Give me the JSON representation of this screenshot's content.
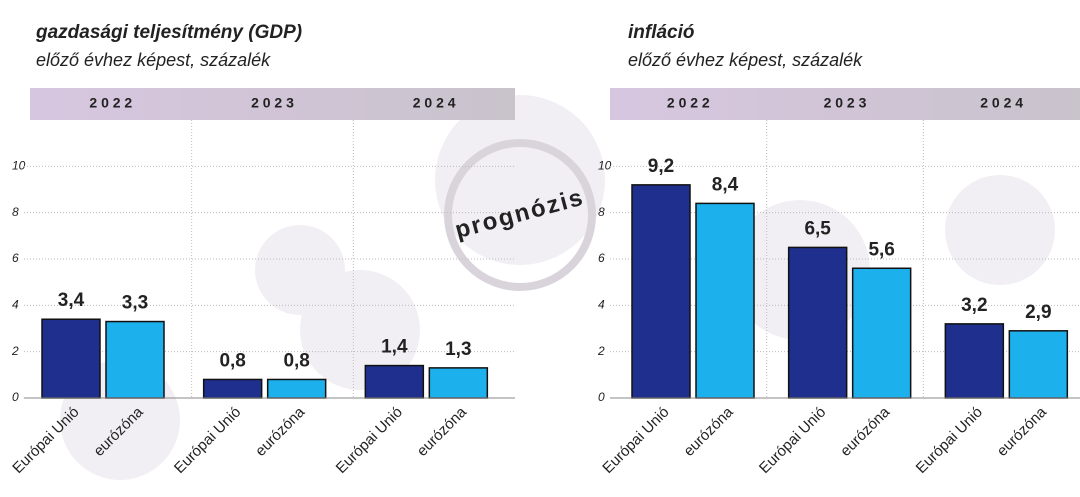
{
  "watermark": "prognózis",
  "chart_data": [
    {
      "type": "bar",
      "title": "gazdasági teljesítmény (GDP)",
      "subtitle": "előző évhez képest, százalék",
      "groups": [
        "2 0 2 2",
        "2 0 2 3",
        "2 0 2 4"
      ],
      "series": [
        {
          "name": "Európai Unió",
          "color": "#1f2f8e",
          "values": [
            3.4,
            0.8,
            1.4
          ],
          "value_labels": [
            "3,4",
            "0,8",
            "1,4"
          ]
        },
        {
          "name": "eurózóna",
          "color": "#1cb1ec",
          "values": [
            3.3,
            0.8,
            1.3
          ],
          "value_labels": [
            "3,3",
            "0,8",
            "1,3"
          ]
        }
      ],
      "ylim": [
        0,
        12
      ],
      "yticks": [
        0,
        2,
        4,
        6,
        8,
        10
      ],
      "grid": true
    },
    {
      "type": "bar",
      "title": "infláció",
      "subtitle": "előző évhez képest, százalék",
      "groups": [
        "2 0 2 2",
        "2 0 2 3",
        "2 0 2 4"
      ],
      "series": [
        {
          "name": "Európai Unió",
          "color": "#1f2f8e",
          "values": [
            9.2,
            6.5,
            3.2
          ],
          "value_labels": [
            "9,2",
            "6,5",
            "3,2"
          ]
        },
        {
          "name": "eurózóna",
          "color": "#1cb1ec",
          "values": [
            8.4,
            5.6,
            2.9
          ],
          "value_labels": [
            "8,4",
            "5,6",
            "2,9"
          ]
        }
      ],
      "ylim": [
        0,
        12
      ],
      "yticks": [
        0,
        2,
        4,
        6,
        8,
        10
      ],
      "grid": true
    }
  ]
}
